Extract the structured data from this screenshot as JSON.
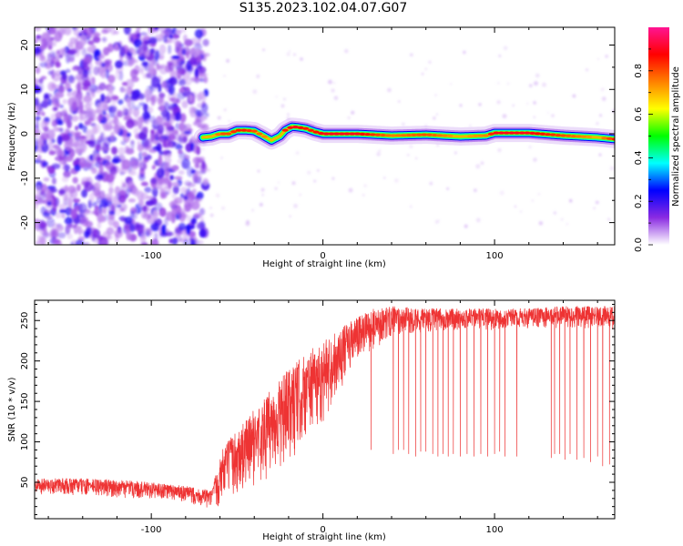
{
  "title": "S135.2023.102.04.07.G07",
  "colors": {
    "snr_line": "#ee3333",
    "spectrum_line": "#cc0000",
    "noise": "#8a2be2"
  },
  "chart_data": [
    {
      "type": "heatmap",
      "title": "S135.2023.102.04.07.G07",
      "xlabel": "Height of straight line (km)",
      "ylabel": "Frequency (Hz)",
      "xlim": [
        -168,
        170
      ],
      "ylim": [
        -25,
        24
      ],
      "xticks": [
        -100,
        0,
        100
      ],
      "yticks": [
        -20,
        -10,
        0,
        10,
        20
      ],
      "grid": false,
      "colorbar": {
        "label": "Normalized spectral amplitude",
        "range": [
          0.0,
          1.0
        ],
        "ticks": [
          0.0,
          0.2,
          0.4,
          0.6,
          0.8
        ],
        "colormap": [
          "#ffffff",
          "#8a2be2",
          "#0000ff",
          "#00ffff",
          "#00ff00",
          "#ffff00",
          "#ff8000",
          "#ff0000",
          "#ff1493"
        ]
      },
      "noise_region_x": [
        -168,
        -72
      ],
      "ridge": {
        "x": [
          -70,
          -65,
          -60,
          -55,
          -50,
          -45,
          -40,
          -35,
          -30,
          -25,
          -22,
          -18,
          -15,
          -10,
          -5,
          0,
          20,
          40,
          60,
          80,
          95,
          100,
          120,
          140,
          150,
          160,
          170
        ],
        "freq": [
          -0.8,
          -0.6,
          0.0,
          0.0,
          0.8,
          0.8,
          0.6,
          -0.4,
          -1.5,
          -0.5,
          0.8,
          1.6,
          1.5,
          1.2,
          0.5,
          0.0,
          0.0,
          -0.4,
          -0.2,
          -0.6,
          -0.4,
          0.2,
          0.2,
          -0.4,
          -0.6,
          -0.8,
          -1.2
        ],
        "amp": [
          0.6,
          0.6,
          0.8,
          0.8,
          0.85,
          0.85,
          0.8,
          0.75,
          0.7,
          0.7,
          0.85,
          0.9,
          0.9,
          0.85,
          0.85,
          0.9,
          0.9,
          0.75,
          0.8,
          0.7,
          0.75,
          0.9,
          0.9,
          0.8,
          0.75,
          0.7,
          0.85
        ]
      }
    },
    {
      "type": "line",
      "xlabel": "Height of straight line (km)",
      "ylabel": "SNR (10 * v/v)",
      "xlim": [
        -168,
        170
      ],
      "ylim": [
        5,
        275
      ],
      "xticks": [
        -100,
        0,
        100
      ],
      "yticks": [
        50,
        100,
        150,
        200,
        250
      ],
      "grid": false,
      "envelope": {
        "x": [
          -168,
          -140,
          -110,
          -90,
          -75,
          -65,
          -60,
          -58,
          -50,
          -40,
          -30,
          -20,
          -10,
          0,
          10,
          20,
          30,
          40,
          60,
          80,
          100,
          120,
          140,
          160,
          170
        ],
        "min": [
          35,
          33,
          30,
          27,
          22,
          15,
          20,
          30,
          30,
          45,
          55,
          70,
          100,
          120,
          165,
          195,
          215,
          230,
          235,
          238,
          238,
          240,
          240,
          240,
          238
        ],
        "max": [
          55,
          55,
          52,
          48,
          44,
          40,
          80,
          95,
          115,
          140,
          165,
          190,
          210,
          225,
          240,
          255,
          265,
          268,
          265,
          265,
          265,
          265,
          268,
          268,
          268
        ]
      },
      "dropouts": [
        {
          "x": 28,
          "y": 90
        },
        {
          "x": 41,
          "y": 85
        },
        {
          "x": 44,
          "y": 90
        },
        {
          "x": 47,
          "y": 90
        },
        {
          "x": 50,
          "y": 85
        },
        {
          "x": 54,
          "y": 82
        },
        {
          "x": 57,
          "y": 88
        },
        {
          "x": 60,
          "y": 88
        },
        {
          "x": 64,
          "y": 85
        },
        {
          "x": 67,
          "y": 82
        },
        {
          "x": 70,
          "y": 85
        },
        {
          "x": 73,
          "y": 82
        },
        {
          "x": 76,
          "y": 85
        },
        {
          "x": 80,
          "y": 82
        },
        {
          "x": 84,
          "y": 85
        },
        {
          "x": 88,
          "y": 82
        },
        {
          "x": 92,
          "y": 85
        },
        {
          "x": 96,
          "y": 82
        },
        {
          "x": 100,
          "y": 85
        },
        {
          "x": 103,
          "y": 88
        },
        {
          "x": 106,
          "y": 82
        },
        {
          "x": 113,
          "y": 82
        },
        {
          "x": 133,
          "y": 80
        },
        {
          "x": 135,
          "y": 85
        },
        {
          "x": 138,
          "y": 85
        },
        {
          "x": 141,
          "y": 78
        },
        {
          "x": 144,
          "y": 85
        },
        {
          "x": 148,
          "y": 78
        },
        {
          "x": 152,
          "y": 80
        },
        {
          "x": 156,
          "y": 75
        },
        {
          "x": 160,
          "y": 82
        },
        {
          "x": 163,
          "y": 70
        },
        {
          "x": 167,
          "y": 72
        }
      ]
    }
  ]
}
